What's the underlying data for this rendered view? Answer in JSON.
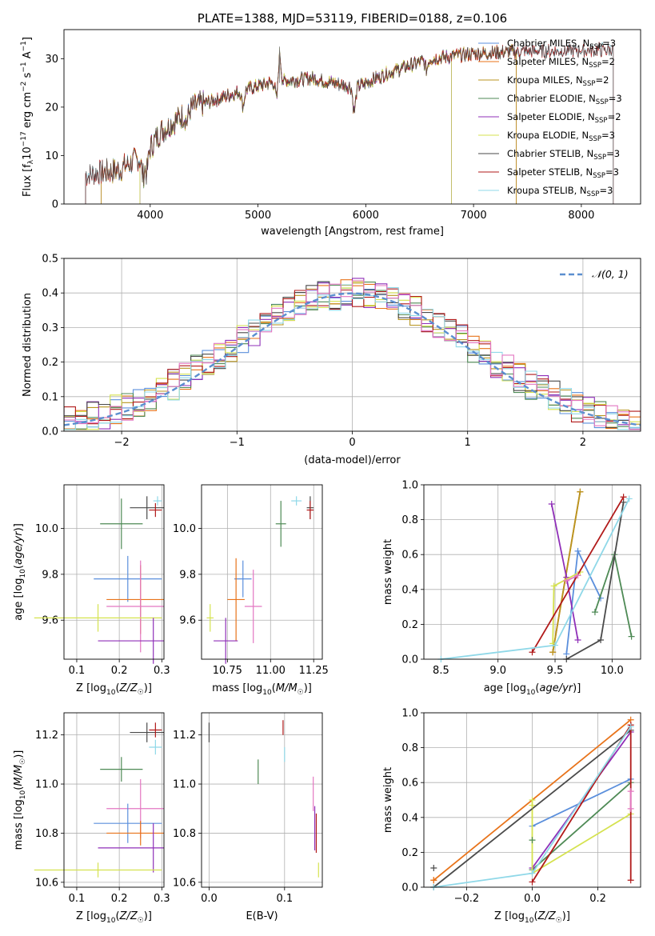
{
  "colors": {
    "chabrier_miles": "#5b8fdc",
    "salpeter_miles": "#e8731a",
    "kroupa_miles": "#b8951f",
    "chabrier_elodie": "#4e8a55",
    "salpeter_elodie": "#8f2fb8",
    "kroupa_elodie": "#d5e24f",
    "chabrier_stelib": "#4a4a4a",
    "salpeter_stelib": "#b11a1a",
    "kroupa_stelib": "#8fd8e8",
    "pink": "#e377c2",
    "normal": "#5b8fcf",
    "grid": "#b0b0b0"
  },
  "chart_data": [
    {
      "id": "spectrum",
      "type": "line",
      "title": "PLATE=1388, MJD=53119, FIBERID=0188, z=0.106",
      "xlabel": "wavelength [Angstrom, rest frame]",
      "ylabel_parts": [
        "Flux [f",
        "λ",
        "10",
        "−17",
        " erg cm",
        "−2",
        " s",
        "−1",
        " A",
        "−1",
        "]"
      ],
      "xlim": [
        3200,
        8550
      ],
      "ylim": [
        0,
        36
      ],
      "xticks": [
        4000,
        5000,
        6000,
        7000,
        8000
      ],
      "yticks": [
        0,
        10,
        20,
        30
      ],
      "grid": false,
      "legend_position": "top-right",
      "legend": [
        {
          "label": "Chabrier MILES, N",
          "sub": "SSP",
          "tail": "=3",
          "color_key": "chabrier_miles"
        },
        {
          "label": "Salpeter MILES, N",
          "sub": "SSP",
          "tail": "=2",
          "color_key": "salpeter_miles"
        },
        {
          "label": "Kroupa MILES, N",
          "sub": "SSP",
          "tail": "=2",
          "color_key": "kroupa_miles"
        },
        {
          "label": "Chabrier ELODIE, N",
          "sub": "SSP",
          "tail": "=3",
          "color_key": "chabrier_elodie"
        },
        {
          "label": "Salpeter ELODIE, N",
          "sub": "SSP",
          "tail": "=2",
          "color_key": "salpeter_elodie"
        },
        {
          "label": "Kroupa ELODIE, N",
          "sub": "SSP",
          "tail": "=3",
          "color_key": "kroupa_elodie"
        },
        {
          "label": "Chabrier STELIB, N",
          "sub": "SSP",
          "tail": "=3",
          "color_key": "chabrier_stelib"
        },
        {
          "label": "Salpeter STELIB, N",
          "sub": "SSP",
          "tail": "=3",
          "color_key": "salpeter_stelib"
        },
        {
          "label": "Kroupa STELIB, N",
          "sub": "SSP",
          "tail": "=3",
          "color_key": "kroupa_stelib"
        }
      ],
      "continuum_knots": [
        [
          3400,
          6
        ],
        [
          3700,
          7
        ],
        [
          3950,
          10
        ],
        [
          4100,
          15
        ],
        [
          4400,
          20
        ],
        [
          4800,
          23
        ],
        [
          5100,
          25
        ],
        [
          5500,
          26
        ],
        [
          5900,
          24
        ],
        [
          6200,
          27
        ],
        [
          6600,
          30
        ],
        [
          7000,
          31
        ],
        [
          7400,
          31.5
        ],
        [
          7800,
          31.5
        ],
        [
          8300,
          32
        ]
      ],
      "series_ranges": [
        {
          "color_key": "chabrier_miles",
          "x": [
            3540,
            7400
          ]
        },
        {
          "color_key": "salpeter_miles",
          "x": [
            3540,
            7400
          ]
        },
        {
          "color_key": "kroupa_miles",
          "x": [
            3540,
            7400
          ]
        },
        {
          "color_key": "chabrier_elodie",
          "x": [
            3900,
            6800
          ]
        },
        {
          "color_key": "salpeter_elodie",
          "x": [
            3900,
            6800
          ]
        },
        {
          "color_key": "kroupa_elodie",
          "x": [
            3900,
            6800
          ]
        },
        {
          "color_key": "chabrier_stelib",
          "x": [
            3400,
            8300
          ]
        },
        {
          "color_key": "salpeter_stelib",
          "x": [
            3400,
            8300
          ]
        },
        {
          "color_key": "kroupa_stelib",
          "x": [
            3400,
            8300
          ]
        }
      ],
      "line_features": [
        {
          "x": 3933,
          "depth": -4
        },
        {
          "x": 3968,
          "depth": -4
        },
        {
          "x": 4340,
          "depth": -2
        },
        {
          "x": 4861,
          "depth": -3
        },
        {
          "x": 5175,
          "depth": -4
        },
        {
          "x": 5200,
          "depth": 6
        },
        {
          "x": 5893,
          "depth": -5
        },
        {
          "x": 6563,
          "depth": -2
        }
      ]
    },
    {
      "id": "residuals",
      "type": "step",
      "xlabel": "(data-model)/error",
      "ylabel": "Normed distribution",
      "xlim": [
        -2.5,
        2.5
      ],
      "ylim": [
        0,
        0.5
      ],
      "xticks": [
        -2,
        -1,
        0,
        1,
        2
      ],
      "yticks": [
        0,
        0.1,
        0.2,
        0.3,
        0.4,
        0.5
      ],
      "grid": true,
      "legend_position": "top-right",
      "legend": [
        {
          "label": "𝒩(0, 1)",
          "color_key": "normal"
        }
      ],
      "bin_width": 0.1,
      "series_keys": [
        "chabrier_miles",
        "salpeter_miles",
        "kroupa_miles",
        "chabrier_elodie",
        "salpeter_elodie",
        "kroupa_elodie",
        "chabrier_stelib",
        "salpeter_stelib",
        "kroupa_stelib",
        "pink"
      ]
    },
    {
      "id": "age_vs_z",
      "type": "errorbar",
      "xlabel": "Z [log10(Z/Z☉)]",
      "ylabel": "age  [log10(age/yr)]",
      "xlim": [
        0.07,
        0.305
      ],
      "ylim": [
        9.43,
        10.19
      ],
      "xticks": [
        0.1,
        0.2,
        0.3
      ],
      "yticks": [
        9.6,
        9.8,
        10.0
      ],
      "grid": true,
      "points": [
        {
          "x": 0.265,
          "y": 10.09,
          "xerr": 0.04,
          "yerr": 0.05,
          "color_key": "chabrier_stelib"
        },
        {
          "x": 0.29,
          "y": 10.12,
          "xerr": 0.01,
          "yerr": 0.02,
          "color_key": "kroupa_stelib"
        },
        {
          "x": 0.285,
          "y": 10.08,
          "xerr": 0.015,
          "yerr": 0.03,
          "color_key": "salpeter_stelib"
        },
        {
          "x": 0.205,
          "y": 10.02,
          "xerr": 0.05,
          "yerr": 0.11,
          "color_key": "chabrier_elodie"
        },
        {
          "x": 0.22,
          "y": 9.78,
          "xerr": 0.08,
          "yerr": 0.1,
          "color_key": "chabrier_miles"
        },
        {
          "x": 0.25,
          "y": 9.69,
          "xerr": 0.08,
          "yerr": 0.15,
          "color_key": "salpeter_miles"
        },
        {
          "x": 0.25,
          "y": 9.66,
          "xerr": 0.08,
          "yerr": 0.2,
          "color_key": "pink"
        },
        {
          "x": 0.15,
          "y": 9.61,
          "xerr": 0.15,
          "yerr": 0.06,
          "color_key": "kroupa_elodie"
        },
        {
          "x": 0.28,
          "y": 9.51,
          "xerr": 0.13,
          "yerr": 0.1,
          "color_key": "salpeter_elodie"
        }
      ]
    },
    {
      "id": "age_vs_mass",
      "type": "errorbar",
      "xlabel": "mass [log10(M/M☉)]",
      "ylabel": "",
      "xlim": [
        10.6,
        11.3
      ],
      "ylim": [
        9.43,
        10.19
      ],
      "xticks": [
        10.75,
        11.0,
        11.25
      ],
      "yticks": [
        9.6,
        9.8,
        10.0
      ],
      "grid": true,
      "points": [
        {
          "x": 11.23,
          "y": 10.09,
          "xerr": 0.02,
          "yerr": 0.05,
          "color_key": "chabrier_stelib"
        },
        {
          "x": 11.15,
          "y": 10.12,
          "xerr": 0.03,
          "yerr": 0.02,
          "color_key": "kroupa_stelib"
        },
        {
          "x": 11.23,
          "y": 10.08,
          "xerr": 0.02,
          "yerr": 0.04,
          "color_key": "salpeter_stelib"
        },
        {
          "x": 11.06,
          "y": 10.02,
          "xerr": 0.03,
          "yerr": 0.1,
          "color_key": "chabrier_elodie"
        },
        {
          "x": 10.84,
          "y": 9.78,
          "xerr": 0.05,
          "yerr": 0.08,
          "color_key": "chabrier_miles"
        },
        {
          "x": 10.8,
          "y": 9.69,
          "xerr": 0.05,
          "yerr": 0.18,
          "color_key": "salpeter_miles"
        },
        {
          "x": 10.9,
          "y": 9.66,
          "xerr": 0.05,
          "yerr": 0.16,
          "color_key": "pink"
        },
        {
          "x": 10.65,
          "y": 9.61,
          "xerr": 0.02,
          "yerr": 0.06,
          "color_key": "kroupa_elodie"
        },
        {
          "x": 10.74,
          "y": 9.51,
          "xerr": 0.07,
          "yerr": 0.1,
          "color_key": "salpeter_elodie"
        }
      ]
    },
    {
      "id": "weight_vs_age",
      "type": "line",
      "xlabel": "age  [log10(age/yr)]",
      "ylabel": "mass weight",
      "xlim": [
        8.35,
        10.25
      ],
      "ylim": [
        0,
        1
      ],
      "xticks": [
        8.5,
        9.0,
        9.5,
        10.0
      ],
      "yticks": [
        0,
        0.2,
        0.4,
        0.6,
        0.8,
        1.0
      ],
      "grid": true,
      "series": [
        {
          "color_key": "chabrier_miles",
          "x": [
            9.6,
            9.7,
            9.9
          ],
          "y": [
            0.03,
            0.62,
            0.35
          ]
        },
        {
          "color_key": "salpeter_miles",
          "x": [
            9.48,
            9.72
          ],
          "y": [
            0.04,
            0.96
          ]
        },
        {
          "color_key": "kroupa_miles",
          "x": [
            9.48,
            9.72
          ],
          "y": [
            0.04,
            0.96
          ]
        },
        {
          "color_key": "chabrier_elodie",
          "x": [
            9.85,
            10.02,
            10.17
          ],
          "y": [
            0.27,
            0.6,
            0.13
          ]
        },
        {
          "color_key": "salpeter_elodie",
          "x": [
            9.47,
            9.6,
            9.7
          ],
          "y": [
            0.89,
            0.47,
            0.11
          ]
        },
        {
          "color_key": "kroupa_elodie",
          "x": [
            9.48,
            9.49,
            9.72
          ],
          "y": [
            0.09,
            0.42,
            0.5
          ]
        },
        {
          "color_key": "chabrier_stelib",
          "x": [
            9.6,
            9.9,
            10.1
          ],
          "y": [
            0.0,
            0.11,
            0.9
          ]
        },
        {
          "color_key": "salpeter_stelib",
          "x": [
            9.3,
            10.1
          ],
          "y": [
            0.04,
            0.93
          ]
        },
        {
          "color_key": "kroupa_stelib",
          "x": [
            8.5,
            9.5,
            10.15
          ],
          "y": [
            0.0,
            0.08,
            0.92
          ]
        },
        {
          "color_key": "pink",
          "x": [
            9.6,
            9.7
          ],
          "y": [
            0.45,
            0.48
          ]
        }
      ]
    },
    {
      "id": "mass_vs_z",
      "type": "errorbar",
      "xlabel": "Z [log10(Z/Z☉)]",
      "ylabel": "mass [log10(M/M☉)]",
      "xlim": [
        0.07,
        0.305
      ],
      "ylim": [
        10.58,
        11.29
      ],
      "xticks": [
        0.1,
        0.2,
        0.3
      ],
      "yticks": [
        10.6,
        10.8,
        11.0,
        11.2
      ],
      "grid": true,
      "points": [
        {
          "x": 0.265,
          "y": 11.21,
          "xerr": 0.04,
          "yerr": 0.04,
          "color_key": "chabrier_stelib"
        },
        {
          "x": 0.285,
          "y": 11.22,
          "xerr": 0.015,
          "yerr": 0.03,
          "color_key": "salpeter_stelib"
        },
        {
          "x": 0.285,
          "y": 11.15,
          "xerr": 0.015,
          "yerr": 0.03,
          "color_key": "kroupa_stelib"
        },
        {
          "x": 0.205,
          "y": 11.06,
          "xerr": 0.05,
          "yerr": 0.05,
          "color_key": "chabrier_elodie"
        },
        {
          "x": 0.25,
          "y": 10.9,
          "xerr": 0.08,
          "yerr": 0.12,
          "color_key": "pink"
        },
        {
          "x": 0.22,
          "y": 10.84,
          "xerr": 0.08,
          "yerr": 0.08,
          "color_key": "chabrier_miles"
        },
        {
          "x": 0.25,
          "y": 10.8,
          "xerr": 0.08,
          "yerr": 0.05,
          "color_key": "salpeter_miles"
        },
        {
          "x": 0.28,
          "y": 10.74,
          "xerr": 0.13,
          "yerr": 0.1,
          "color_key": "salpeter_elodie"
        },
        {
          "x": 0.15,
          "y": 10.65,
          "xerr": 0.15,
          "yerr": 0.03,
          "color_key": "kroupa_elodie"
        }
      ]
    },
    {
      "id": "mass_vs_ebv",
      "type": "errorbar",
      "xlabel": "E(B-V)",
      "ylabel": "",
      "xlim": [
        -0.01,
        0.15
      ],
      "ylim": [
        10.58,
        11.29
      ],
      "xticks": [
        0.0,
        0.1
      ],
      "yticks": [
        10.6,
        10.8,
        11.0,
        11.2
      ],
      "grid": true,
      "points": [
        {
          "x": 0.0,
          "y": 11.21,
          "xerr": 0,
          "yerr": 0.04,
          "color_key": "chabrier_stelib"
        },
        {
          "x": 0.098,
          "y": 11.23,
          "xerr": 0,
          "yerr": 0.03,
          "color_key": "salpeter_stelib"
        },
        {
          "x": 0.1,
          "y": 11.12,
          "xerr": 0,
          "yerr": 0.03,
          "color_key": "kroupa_stelib"
        },
        {
          "x": 0.065,
          "y": 11.05,
          "xerr": 0,
          "yerr": 0.05,
          "color_key": "chabrier_elodie"
        },
        {
          "x": 0.138,
          "y": 10.96,
          "xerr": 0,
          "yerr": 0.07,
          "color_key": "pink"
        },
        {
          "x": 0.14,
          "y": 10.82,
          "xerr": 0,
          "yerr": 0.09,
          "color_key": "salpeter_elodie"
        },
        {
          "x": 0.142,
          "y": 10.8,
          "xerr": 0,
          "yerr": 0.08,
          "color_key": "salpeter_stelib"
        },
        {
          "x": 0.145,
          "y": 10.65,
          "xerr": 0,
          "yerr": 0.03,
          "color_key": "kroupa_elodie"
        }
      ]
    },
    {
      "id": "weight_vs_z",
      "type": "line",
      "xlabel": "Z [log10(Z/Z☉)]",
      "ylabel": "mass weight",
      "xlim": [
        -0.33,
        0.33
      ],
      "ylim": [
        0,
        1
      ],
      "xticks": [
        -0.2,
        0.0,
        0.2
      ],
      "yticks": [
        0,
        0.2,
        0.4,
        0.6,
        0.8,
        1.0
      ],
      "grid": true,
      "series": [
        {
          "color_key": "chabrier_miles",
          "x": [
            0.0,
            0.3
          ],
          "y": [
            0.35,
            0.62
          ]
        },
        {
          "color_key": "salpeter_miles",
          "x": [
            -0.3,
            0.3
          ],
          "y": [
            0.04,
            0.96
          ]
        },
        {
          "color_key": "chabrier_elodie",
          "x": [
            0.0,
            0.3
          ],
          "y": [
            0.1,
            0.6
          ]
        },
        {
          "color_key": "salpeter_elodie",
          "x": [
            0.0,
            0.3
          ],
          "y": [
            0.11,
            0.89
          ]
        },
        {
          "color_key": "kroupa_elodie",
          "x": [
            0.0,
            0.0,
            0.3
          ],
          "y": [
            0.5,
            0.08,
            0.42
          ]
        },
        {
          "color_key": "chabrier_stelib",
          "x": [
            -0.3,
            0.3
          ],
          "y": [
            0.0,
            0.9
          ]
        },
        {
          "color_key": "salpeter_stelib",
          "x": [
            0.0,
            0.3,
            0.3
          ],
          "y": [
            0.03,
            0.93,
            0.04
          ]
        },
        {
          "color_key": "kroupa_stelib",
          "x": [
            -0.3,
            0.0,
            0.3
          ],
          "y": [
            0.0,
            0.08,
            0.92
          ]
        },
        {
          "color_key": "pink",
          "x": [
            0.3,
            0.3
          ],
          "y": [
            0.45,
            0.55
          ]
        }
      ],
      "markers": [
        {
          "x": -0.3,
          "y": 0.11,
          "color_key": "chabrier_stelib"
        },
        {
          "x": -0.3,
          "y": 0.04,
          "color_key": "salpeter_miles"
        },
        {
          "x": 0.0,
          "y": 0.27,
          "color_key": "chabrier_elodie"
        },
        {
          "x": 0.0,
          "y": 0.47,
          "color_key": "kroupa_elodie"
        }
      ]
    }
  ]
}
